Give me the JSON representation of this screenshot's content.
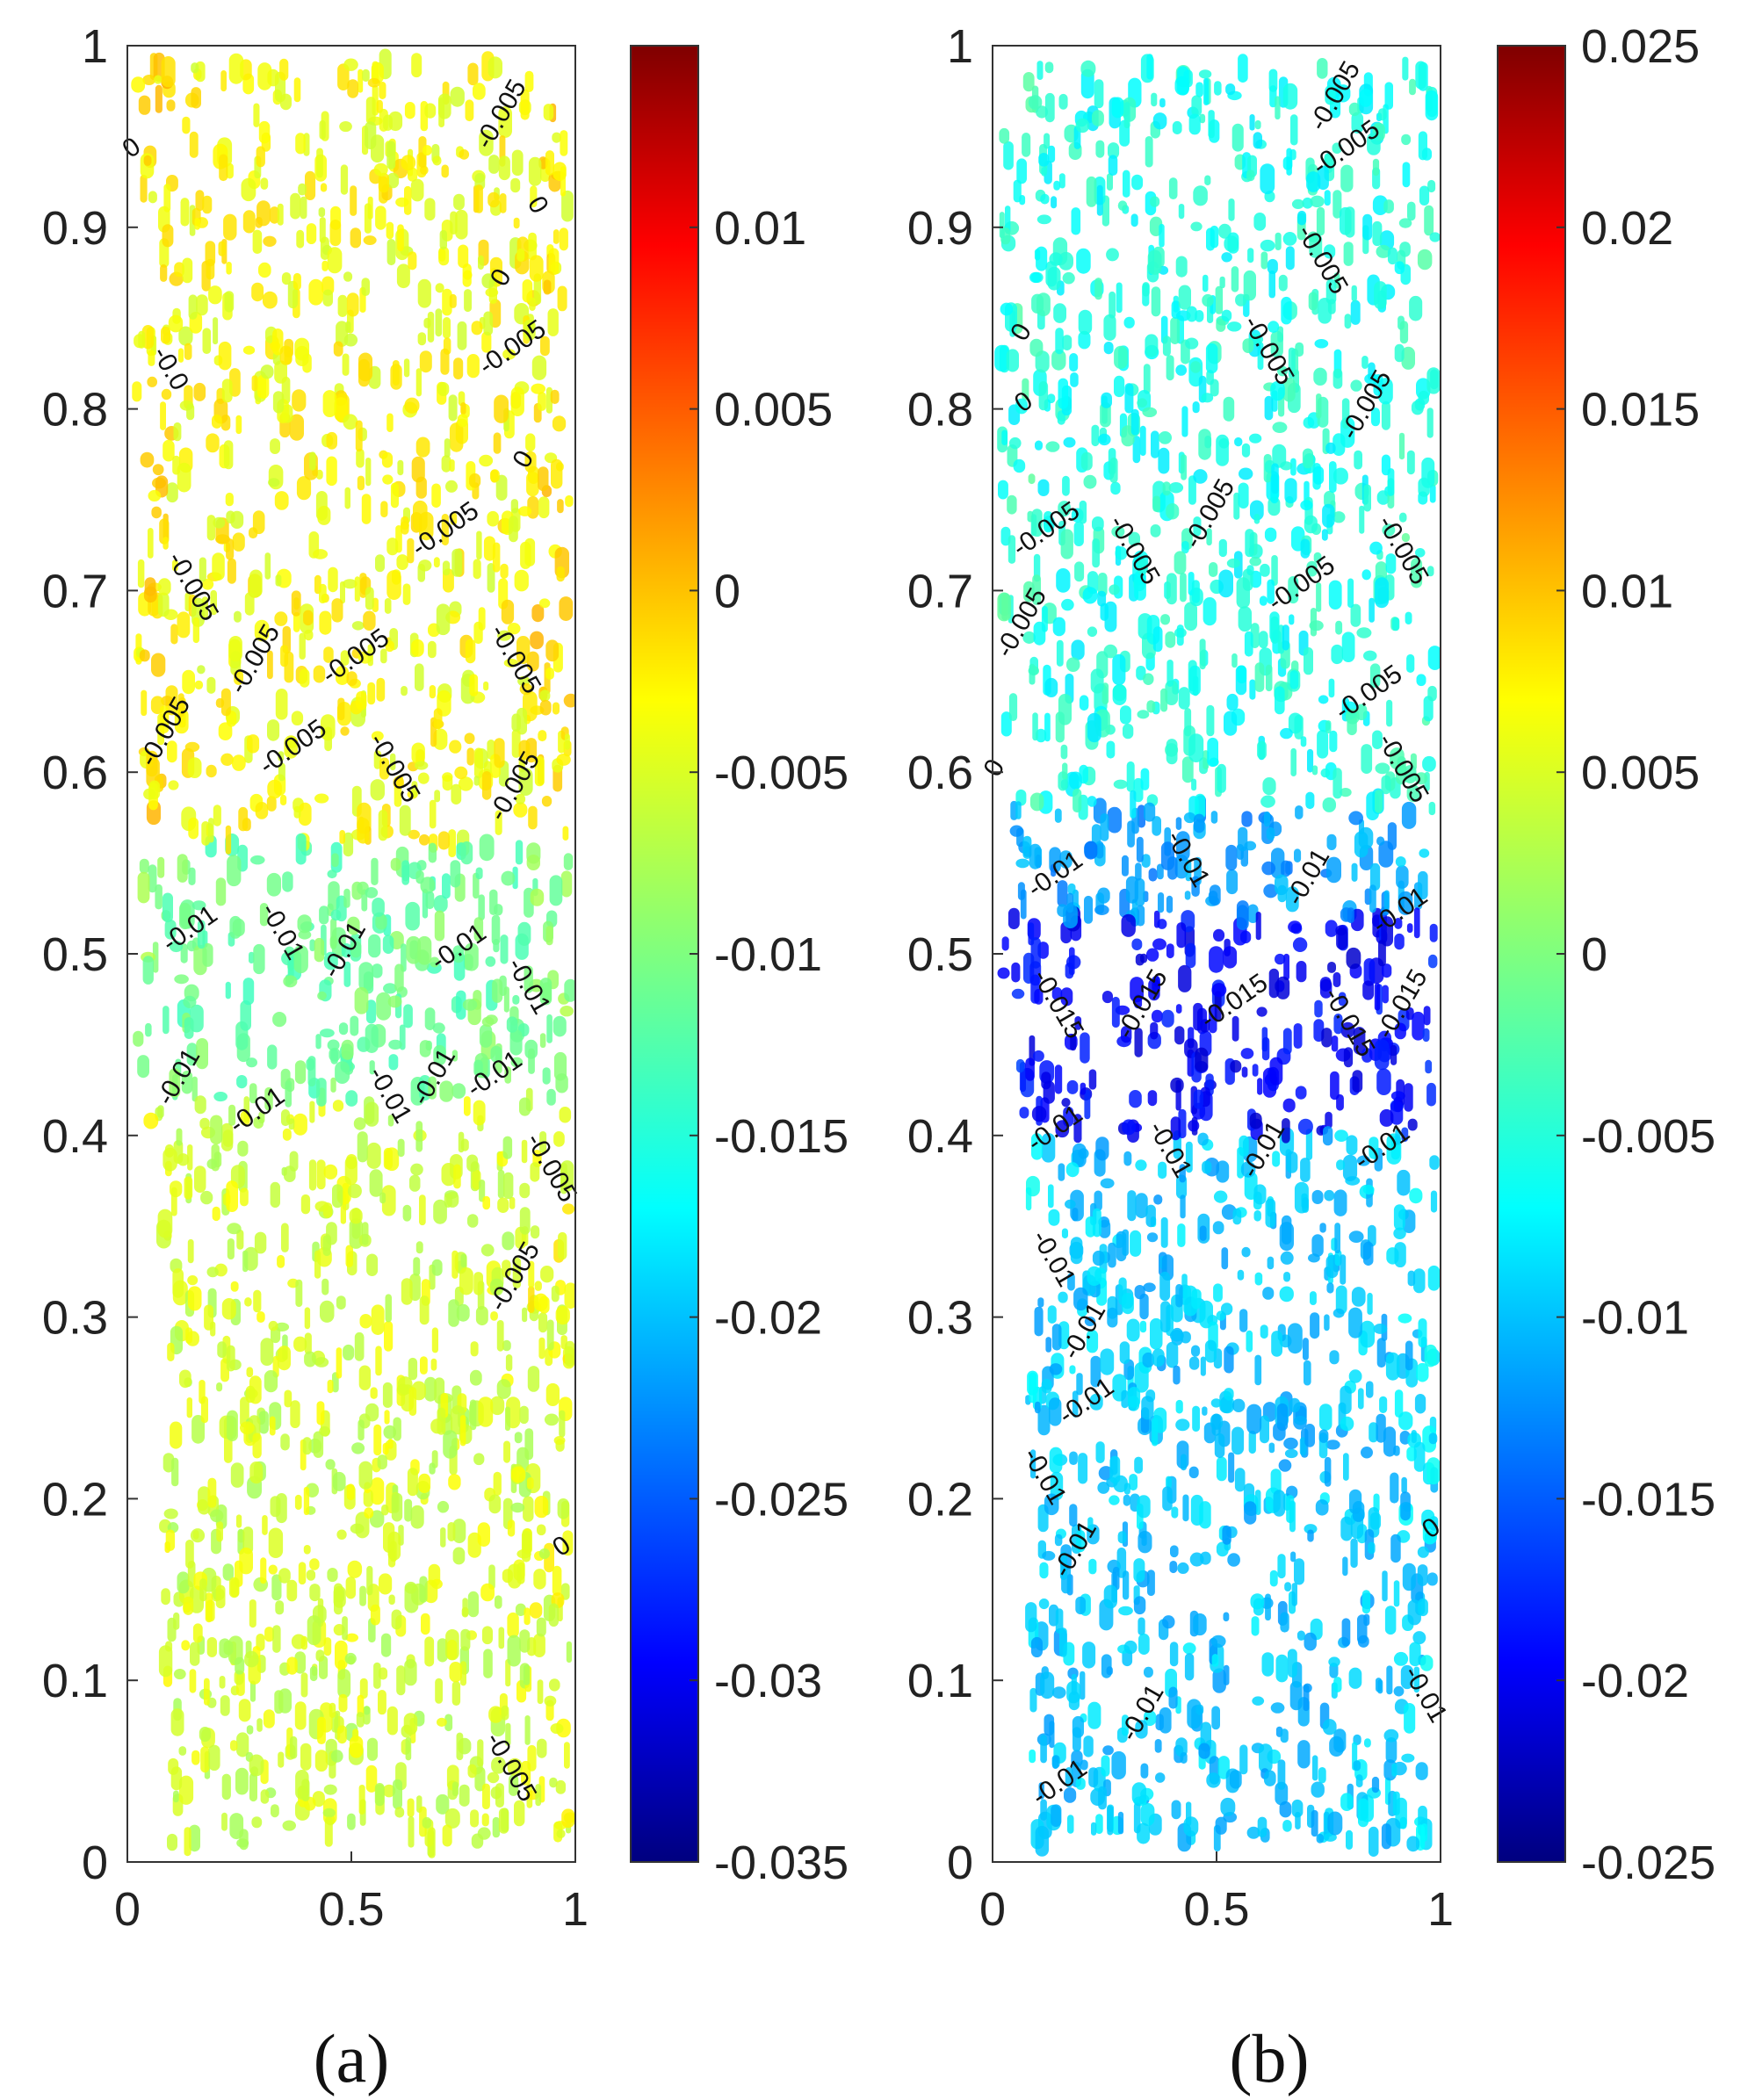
{
  "chart_data": [
    {
      "type": "heatmap",
      "panel_label": "(a)",
      "xlim": [
        0,
        1
      ],
      "ylim": [
        0,
        1
      ],
      "x_ticks": [
        "0",
        "0.5",
        "1"
      ],
      "y_ticks": [
        "0",
        "0.1",
        "0.2",
        "0.3",
        "0.4",
        "0.5",
        "0.6",
        "0.7",
        "0.8",
        "0.9",
        "1"
      ],
      "colorbar": {
        "range": [
          -0.035,
          0.015
        ],
        "ticks": [
          "0.01",
          "0.005",
          "0",
          "-0.005",
          "-0.01",
          "-0.015",
          "-0.02",
          "-0.025",
          "-0.03",
          "-0.035"
        ],
        "tick_values": [
          0.01,
          0.005,
          0,
          -0.005,
          -0.01,
          -0.015,
          -0.02,
          -0.025,
          -0.03,
          -0.035
        ]
      },
      "colormap": "jet",
      "grid": false,
      "field_bands": [
        {
          "y_from": 0.0,
          "y_to": 0.42,
          "value": -0.006
        },
        {
          "y_from": 0.42,
          "y_to": 0.56,
          "value": -0.011
        },
        {
          "y_from": 0.56,
          "y_to": 1.0,
          "value": -0.004
        }
      ],
      "contour_labels": [
        {
          "text": "-0.005",
          "x": 0.85,
          "y": 0.96
        },
        {
          "text": "0",
          "x": 0.02,
          "y": 0.94
        },
        {
          "text": "0",
          "x": 0.9,
          "y": 0.91
        },
        {
          "text": "0",
          "x": 0.85,
          "y": 0.87
        },
        {
          "text": "-0.005",
          "x": 0.87,
          "y": 0.83
        },
        {
          "text": "-0.0",
          "x": 0.08,
          "y": 0.82
        },
        {
          "text": "0",
          "x": 0.9,
          "y": 0.77
        },
        {
          "text": "-0.005",
          "x": 0.72,
          "y": 0.73
        },
        {
          "text": "-0.005",
          "x": 0.13,
          "y": 0.7
        },
        {
          "text": "-0.005",
          "x": 0.3,
          "y": 0.66
        },
        {
          "text": "-0.005",
          "x": 0.52,
          "y": 0.66
        },
        {
          "text": "-0.005",
          "x": 0.85,
          "y": 0.66
        },
        {
          "text": "-0.005",
          "x": 0.1,
          "y": 0.62
        },
        {
          "text": "-0.005",
          "x": 0.38,
          "y": 0.61
        },
        {
          "text": "-0.005",
          "x": 0.58,
          "y": 0.6
        },
        {
          "text": "-0.005",
          "x": 0.88,
          "y": 0.59
        },
        {
          "text": "-0.01",
          "x": 0.15,
          "y": 0.51
        },
        {
          "text": "-0.01",
          "x": 0.33,
          "y": 0.51
        },
        {
          "text": "-0.01",
          "x": 0.5,
          "y": 0.5
        },
        {
          "text": "-0.01",
          "x": 0.75,
          "y": 0.5
        },
        {
          "text": "-0.01",
          "x": 0.88,
          "y": 0.48
        },
        {
          "text": "-0.01",
          "x": 0.13,
          "y": 0.43
        },
        {
          "text": "-0.01",
          "x": 0.3,
          "y": 0.41
        },
        {
          "text": "-0.01",
          "x": 0.57,
          "y": 0.42
        },
        {
          "text": "-0.01",
          "x": 0.7,
          "y": 0.43
        },
        {
          "text": "-0.01",
          "x": 0.83,
          "y": 0.43
        },
        {
          "text": "-0.005",
          "x": 0.93,
          "y": 0.38
        },
        {
          "text": "-0.005",
          "x": 0.88,
          "y": 0.32
        },
        {
          "text": "0",
          "x": 0.98,
          "y": 0.17
        },
        {
          "text": "-0.005",
          "x": 0.84,
          "y": 0.05
        }
      ]
    },
    {
      "type": "heatmap",
      "panel_label": "(b)",
      "xlim": [
        0,
        1
      ],
      "ylim": [
        0,
        1
      ],
      "x_ticks": [
        "0",
        "0.5",
        "1"
      ],
      "y_ticks": [
        "0",
        "0.1",
        "0.2",
        "0.3",
        "0.4",
        "0.5",
        "0.6",
        "0.7",
        "0.8",
        "0.9",
        "1"
      ],
      "colorbar": {
        "range": [
          -0.025,
          0.025
        ],
        "ticks": [
          "0.025",
          "0.02",
          "0.015",
          "0.01",
          "0.005",
          "0",
          "-0.005",
          "-0.01",
          "-0.015",
          "-0.02",
          "-0.025"
        ],
        "tick_values": [
          0.025,
          0.02,
          0.015,
          0.01,
          0.005,
          0,
          -0.005,
          -0.01,
          -0.015,
          -0.02,
          -0.025
        ]
      },
      "colormap": "jet",
      "grid": false,
      "field_bands": [
        {
          "y_from": 0.0,
          "y_to": 0.4,
          "value": -0.009
        },
        {
          "y_from": 0.4,
          "y_to": 0.52,
          "value": -0.019
        },
        {
          "y_from": 0.52,
          "y_to": 0.58,
          "value": -0.011
        },
        {
          "y_from": 0.58,
          "y_to": 1.0,
          "value": -0.005
        }
      ],
      "contour_labels": [
        {
          "text": "-0.005",
          "x": 0.78,
          "y": 0.97
        },
        {
          "text": "-0.005",
          "x": 0.8,
          "y": 0.94
        },
        {
          "text": "-0.005",
          "x": 0.72,
          "y": 0.88
        },
        {
          "text": "0",
          "x": 0.08,
          "y": 0.84
        },
        {
          "text": "0",
          "x": 0.08,
          "y": 0.8
        },
        {
          "text": "-0.005",
          "x": 0.6,
          "y": 0.83
        },
        {
          "text": "-0.005",
          "x": 0.85,
          "y": 0.8
        },
        {
          "text": "-0.005",
          "x": 0.13,
          "y": 0.73
        },
        {
          "text": "-0.005",
          "x": 0.3,
          "y": 0.72
        },
        {
          "text": "-0.005",
          "x": 0.5,
          "y": 0.74
        },
        {
          "text": "-0.005",
          "x": 0.7,
          "y": 0.7
        },
        {
          "text": "-0.005",
          "x": 0.9,
          "y": 0.72
        },
        {
          "text": "-0.005",
          "x": 0.08,
          "y": 0.68
        },
        {
          "text": "-0.005",
          "x": 0.85,
          "y": 0.64
        },
        {
          "text": "-0.005",
          "x": 0.9,
          "y": 0.6
        },
        {
          "text": "0",
          "x": 0.02,
          "y": 0.6
        },
        {
          "text": "-0.01",
          "x": 0.15,
          "y": 0.54
        },
        {
          "text": "-0.01",
          "x": 0.42,
          "y": 0.55
        },
        {
          "text": "-0.01",
          "x": 0.72,
          "y": 0.54
        },
        {
          "text": "-0.01",
          "x": 0.92,
          "y": 0.52
        },
        {
          "text": "-0.015",
          "x": 0.13,
          "y": 0.47
        },
        {
          "text": "-0.015",
          "x": 0.35,
          "y": 0.47
        },
        {
          "text": "-0.015",
          "x": 0.55,
          "y": 0.47
        },
        {
          "text": "-0.015",
          "x": 0.78,
          "y": 0.46
        },
        {
          "text": "-0.015",
          "x": 0.93,
          "y": 0.47
        },
        {
          "text": "-0.01",
          "x": 0.15,
          "y": 0.4
        },
        {
          "text": "-0.01",
          "x": 0.38,
          "y": 0.39
        },
        {
          "text": "-0.01",
          "x": 0.62,
          "y": 0.39
        },
        {
          "text": "-0.01",
          "x": 0.88,
          "y": 0.39
        },
        {
          "text": "-0.01",
          "x": 0.12,
          "y": 0.33
        },
        {
          "text": "-0.01",
          "x": 0.22,
          "y": 0.29
        },
        {
          "text": "-0.01",
          "x": 0.22,
          "y": 0.25
        },
        {
          "text": "-0.01",
          "x": 0.1,
          "y": 0.21
        },
        {
          "text": "-0.01",
          "x": 0.2,
          "y": 0.17
        },
        {
          "text": "0",
          "x": 0.99,
          "y": 0.18
        },
        {
          "text": "-0.01",
          "x": 0.95,
          "y": 0.09
        },
        {
          "text": "-0.01",
          "x": 0.35,
          "y": 0.08
        },
        {
          "text": "-0.01",
          "x": 0.16,
          "y": 0.04
        }
      ]
    }
  ]
}
